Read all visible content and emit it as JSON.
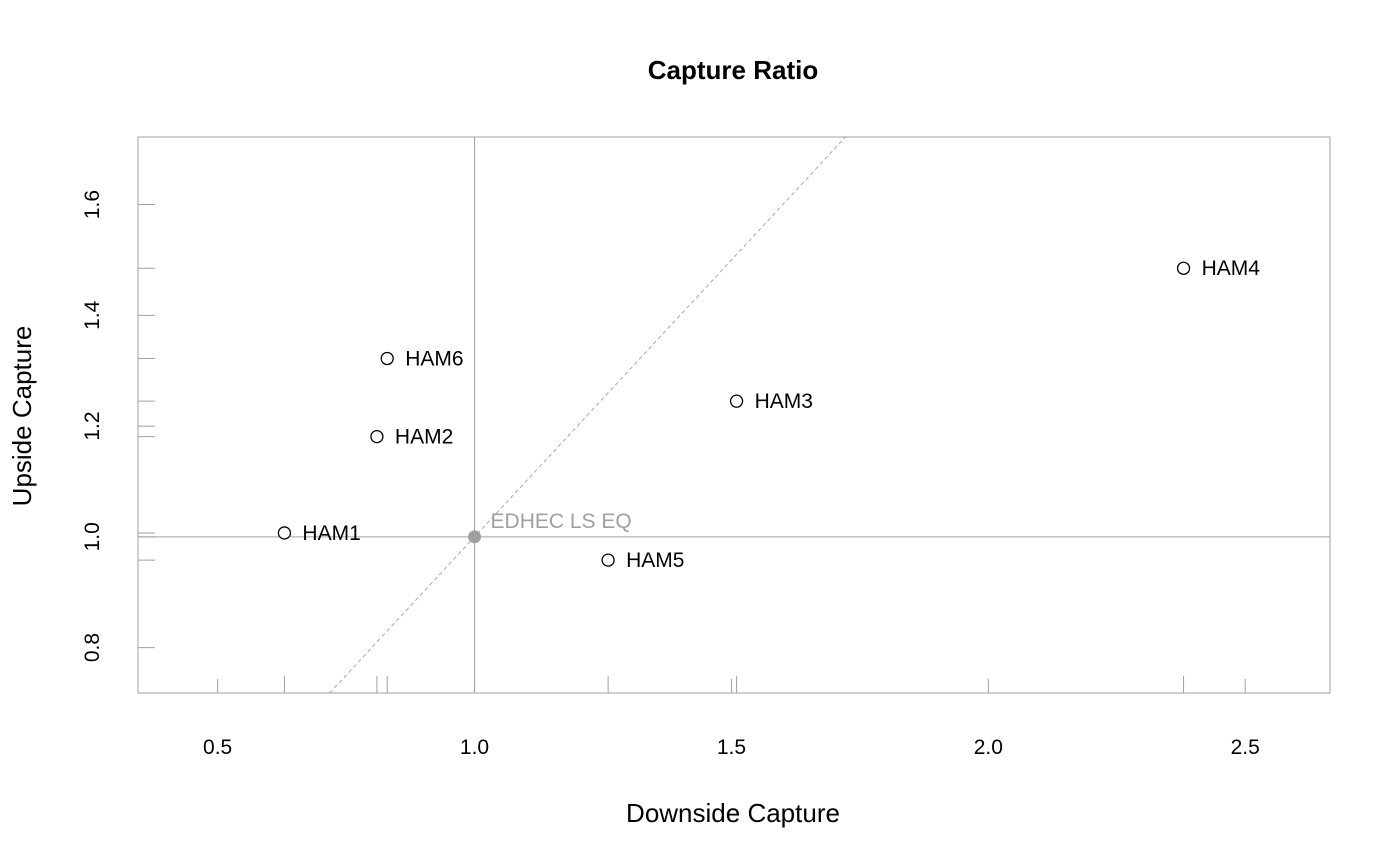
{
  "chart_data": {
    "type": "scatter",
    "title": "Capture Ratio",
    "xlabel": "Downside Capture",
    "ylabel": "Upside Capture",
    "xlim": [
      0.345,
      2.665
    ],
    "ylim": [
      0.718,
      1.722
    ],
    "x_ticks": [
      "0.5",
      "1.0",
      "1.5",
      "2.0",
      "2.5"
    ],
    "y_ticks": [
      "0.8",
      "1.0",
      "1.2",
      "1.4",
      "1.6"
    ],
    "points": [
      {
        "label": "HAM1",
        "x": 0.63,
        "y": 1.007
      },
      {
        "label": "HAM2",
        "x": 0.81,
        "y": 1.181
      },
      {
        "label": "HAM3",
        "x": 1.51,
        "y": 1.245
      },
      {
        "label": "HAM4",
        "x": 2.38,
        "y": 1.485
      },
      {
        "label": "HAM5",
        "x": 1.26,
        "y": 0.958
      },
      {
        "label": "HAM6",
        "x": 0.83,
        "y": 1.322
      }
    ],
    "benchmark": {
      "label": "EDHEC LS EQ",
      "x": 1.0,
      "y": 1.0
    },
    "reference_lines": [
      "x = 1",
      "y = 1",
      "y = x"
    ],
    "grid": false,
    "colors": {
      "points": "#000000",
      "benchmark": "#a0a0a0",
      "axes": "#a0a0a0"
    }
  }
}
